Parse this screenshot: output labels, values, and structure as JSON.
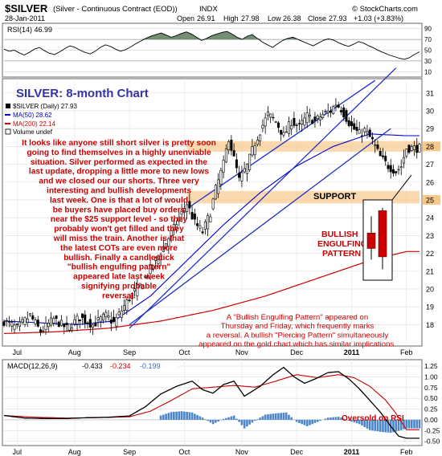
{
  "header": {
    "symbol": "$SILVER",
    "description": "(Silver - Continuous Contract (EOD))",
    "exchange": "INDX",
    "date": "28-Jan-2011",
    "open_label": "Open",
    "open": "26.91",
    "high_label": "High",
    "high": "27.98",
    "low_label": "Low",
    "low": "26.38",
    "close_label": "Close",
    "close": "27.93",
    "change": "+1.03 (+3.83%)",
    "watermark": "© StockCharts.com"
  },
  "rsi_panel": {
    "label": "RSI(14) 46.99",
    "ylim": [
      0,
      100
    ],
    "ticks": [
      90,
      70,
      50,
      30,
      10
    ],
    "overbought": 70,
    "oversold": 30,
    "values": [
      52,
      48,
      50,
      45,
      41,
      46,
      52,
      55,
      49,
      44,
      42,
      47,
      53,
      58,
      55,
      50,
      46,
      43,
      48,
      55,
      60,
      57,
      52,
      48,
      51,
      56,
      62,
      67,
      72,
      76,
      79,
      82,
      78,
      74,
      77,
      81,
      84,
      80,
      74,
      68,
      72,
      77,
      80,
      83,
      85,
      80,
      74,
      70,
      76,
      79,
      72,
      65,
      60,
      55,
      62,
      68,
      72,
      74,
      70,
      66,
      62,
      58,
      63,
      68,
      71,
      69,
      64,
      60,
      57,
      61,
      66,
      63,
      58,
      54,
      49,
      45,
      41,
      38,
      35,
      33,
      36,
      42,
      47
    ],
    "fill_color": "#5a7a5a"
  },
  "price_panel": {
    "title": "SILVER: 8-month Chart",
    "legend": {
      "series_label": "$SILVER (Daily) 27.93",
      "ma50_label": "MA(50) 28.62",
      "ma200_label": "MA(200) 22.14",
      "volume_label": "Volume undef"
    },
    "ylim": [
      16.8,
      31.8
    ],
    "ticks": [
      31,
      30,
      29,
      28,
      27,
      26,
      25,
      24,
      23,
      22,
      21,
      20,
      19,
      18
    ],
    "highlighted_ticks": [
      28,
      25
    ],
    "support_zones": [
      {
        "low": 27.7,
        "high": 28.3
      },
      {
        "low": 24.8,
        "high": 25.5
      }
    ],
    "support_label": "SUPPORT",
    "pattern_label_line1": "BULLISH",
    "pattern_label_line2": "ENGULFING",
    "pattern_label_line3": "PATTERN",
    "commentary": [
      "It looks like anyone still short silver is pretty soon",
      "going to find themselves in a highly unenviable",
      "situation. Silver performed as expected in the",
      "last update, dropping a little more to new lows",
      "and we closed our our shorts. Three very",
      "interesting and bullish developments",
      "last week. One is that a lot of would",
      "be buyers have placed buy orders",
      "near the $25 support level - so they",
      "probably won't get filled and they",
      "will miss the train. Another is that",
      "the latest COTs are even more",
      "bullish. Finally a candlestick",
      "\"bullish engulfing pattern\"",
      "appeared late last week",
      "signifying probable",
      "reversal."
    ],
    "annotation": [
      "A \"Bullish Engulfing Pattern\" appeared on",
      "Thursday and Friday, which frequently marks",
      "a reversal. A bullish \"Piercing Pattern\" simultaneously",
      "appeared on the gold chart which has similar implications."
    ],
    "inset_candles": [
      {
        "o": 23.0,
        "h": 24.2,
        "l": 21.1,
        "c": 21.9,
        "color": "#cc0000"
      },
      {
        "o": 21.3,
        "h": 24.8,
        "l": 20.4,
        "c": 24.6,
        "color": "#cc0000"
      }
    ],
    "inset_ylim": [
      19.8,
      25.2
    ]
  },
  "chart_data": {
    "type": "candlestick",
    "x_labels": [
      "Jul",
      "Aug",
      "Sep",
      "Oct",
      "Nov",
      "Dec",
      "2011",
      "Feb"
    ],
    "x_label_positions": [
      5,
      27,
      48,
      69,
      91,
      112,
      133,
      154
    ],
    "n_days": 160,
    "anchors": [
      [
        0,
        18.2
      ],
      [
        5,
        17.8
      ],
      [
        10,
        18.5
      ],
      [
        14,
        17.6
      ],
      [
        19,
        18.3
      ],
      [
        24,
        17.8
      ],
      [
        29,
        18.4
      ],
      [
        34,
        18.0
      ],
      [
        39,
        18.5
      ],
      [
        42,
        18.1
      ],
      [
        45,
        18.8
      ],
      [
        48,
        19.5
      ],
      [
        52,
        20.2
      ],
      [
        55,
        20.9
      ],
      [
        58,
        21.6
      ],
      [
        62,
        22.6
      ],
      [
        65,
        23.4
      ],
      [
        68,
        24.3
      ],
      [
        70,
        24.8
      ],
      [
        73,
        23.7
      ],
      [
        76,
        23.2
      ],
      [
        79,
        24.3
      ],
      [
        81,
        25.6
      ],
      [
        84,
        27.0
      ],
      [
        86,
        28.5
      ],
      [
        88,
        27.3
      ],
      [
        90,
        26.1
      ],
      [
        93,
        26.9
      ],
      [
        96,
        28.2
      ],
      [
        99,
        29.2
      ],
      [
        101,
        29.8
      ],
      [
        104,
        29.4
      ],
      [
        107,
        28.6
      ],
      [
        110,
        29.4
      ],
      [
        113,
        29.1
      ],
      [
        116,
        29.7
      ],
      [
        119,
        29.4
      ],
      [
        122,
        29.8
      ],
      [
        125,
        30.0
      ],
      [
        127,
        30.4
      ],
      [
        129,
        30.1
      ],
      [
        131,
        29.6
      ],
      [
        133,
        29.1
      ],
      [
        136,
        28.7
      ],
      [
        138,
        28.9
      ],
      [
        141,
        28.3
      ],
      [
        144,
        27.4
      ],
      [
        147,
        26.9
      ],
      [
        150,
        26.6
      ],
      [
        152,
        26.9
      ],
      [
        154,
        27.9
      ]
    ],
    "ma50": [
      [
        0,
        18.2
      ],
      [
        14,
        18.1
      ],
      [
        28,
        18.0
      ],
      [
        42,
        18.2
      ],
      [
        56,
        19.6
      ],
      [
        70,
        21.6
      ],
      [
        84,
        23.6
      ],
      [
        98,
        25.4
      ],
      [
        112,
        26.9
      ],
      [
        126,
        28.0
      ],
      [
        140,
        28.7
      ],
      [
        154,
        28.6
      ]
    ],
    "ma200": [
      [
        0,
        17.5
      ],
      [
        20,
        17.6
      ],
      [
        40,
        17.8
      ],
      [
        60,
        18.2
      ],
      [
        80,
        18.8
      ],
      [
        100,
        19.6
      ],
      [
        120,
        20.6
      ],
      [
        140,
        21.6
      ],
      [
        154,
        22.1
      ]
    ],
    "trendlines": [
      {
        "x1": 48,
        "y1": 17.8,
        "x2": 150,
        "y2": 32.4,
        "color": "#1e2fc8"
      },
      {
        "x1": 71,
        "y1": 24.6,
        "x2": 142,
        "y2": 31.7,
        "color": "#1e2fc8"
      },
      {
        "x1": 48,
        "y1": 18.0,
        "x2": 148,
        "y2": 29.0,
        "color": "#1e2fc8"
      }
    ],
    "price_color": "#000000",
    "ma50_color": "#0000cc",
    "ma200_color": "#cc0000"
  },
  "macd_panel": {
    "label": "MACD(12,26,9)",
    "value": "-0.433",
    "signal_value": "-0.234",
    "hist_value": "-0.199",
    "ylim": [
      -0.6,
      1.4
    ],
    "ticks": [
      1.25,
      1.0,
      0.75,
      0.5,
      0.25,
      0.0,
      -0.25,
      -0.5
    ],
    "tick_labels": [
      "1.25",
      "1.00",
      "0.75",
      "0.50",
      "0.25",
      "0.00",
      "-0.25",
      "-0.50"
    ],
    "macd": [
      [
        0,
        0.1
      ],
      [
        8,
        0.04
      ],
      [
        16,
        0.03
      ],
      [
        24,
        0.03
      ],
      [
        32,
        0.05
      ],
      [
        40,
        0.06
      ],
      [
        48,
        0.09
      ],
      [
        54,
        0.3
      ],
      [
        60,
        0.6
      ],
      [
        66,
        0.78
      ],
      [
        72,
        0.9
      ],
      [
        76,
        0.7
      ],
      [
        80,
        0.62
      ],
      [
        84,
        0.82
      ],
      [
        88,
        0.9
      ],
      [
        92,
        0.55
      ],
      [
        98,
        0.78
      ],
      [
        103,
        1.05
      ],
      [
        107,
        1.22
      ],
      [
        111,
        1.0
      ],
      [
        115,
        0.85
      ],
      [
        119,
        0.95
      ],
      [
        124,
        1.1
      ],
      [
        128,
        1.12
      ],
      [
        132,
        0.95
      ],
      [
        136,
        0.72
      ],
      [
        140,
        0.45
      ],
      [
        144,
        0.18
      ],
      [
        148,
        -0.15
      ],
      [
        151,
        -0.38
      ],
      [
        154,
        -0.43
      ]
    ],
    "signal": [
      [
        0,
        0.1
      ],
      [
        12,
        0.06
      ],
      [
        24,
        0.04
      ],
      [
        36,
        0.05
      ],
      [
        48,
        0.07
      ],
      [
        56,
        0.2
      ],
      [
        64,
        0.45
      ],
      [
        72,
        0.72
      ],
      [
        80,
        0.76
      ],
      [
        88,
        0.8
      ],
      [
        96,
        0.76
      ],
      [
        104,
        0.9
      ],
      [
        112,
        1.05
      ],
      [
        120,
        0.98
      ],
      [
        128,
        1.05
      ],
      [
        134,
        0.98
      ],
      [
        140,
        0.78
      ],
      [
        146,
        0.46
      ],
      [
        150,
        0.15
      ],
      [
        154,
        -0.23
      ]
    ],
    "histogram": [
      [
        60,
        0.1
      ],
      [
        64,
        0.18
      ],
      [
        68,
        0.2
      ],
      [
        72,
        0.17
      ],
      [
        76,
        0.05
      ],
      [
        80,
        -0.1
      ],
      [
        84,
        0.02
      ],
      [
        88,
        0.1
      ],
      [
        92,
        -0.2
      ],
      [
        96,
        -0.02
      ],
      [
        100,
        0.12
      ],
      [
        104,
        0.15
      ],
      [
        108,
        0.17
      ],
      [
        112,
        -0.05
      ],
      [
        116,
        -0.15
      ],
      [
        120,
        -0.05
      ],
      [
        124,
        0.05
      ],
      [
        128,
        0.07
      ],
      [
        132,
        -0.02
      ],
      [
        136,
        -0.1
      ],
      [
        140,
        -0.24
      ],
      [
        144,
        -0.28
      ],
      [
        148,
        -0.3
      ],
      [
        151,
        -0.26
      ],
      [
        154,
        -0.2
      ]
    ],
    "x_labels": [
      "Jul",
      "Aug",
      "Sep",
      "Oct",
      "Nov",
      "Dec",
      "2011",
      "Feb"
    ],
    "annotation": "Oversold on RSI"
  }
}
